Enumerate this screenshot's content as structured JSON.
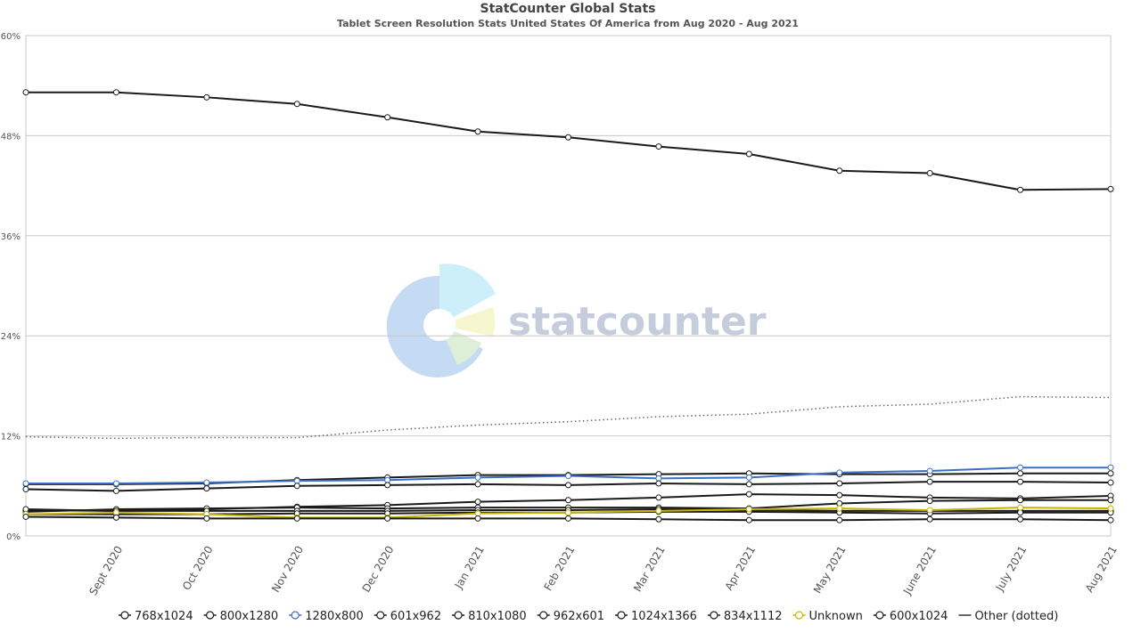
{
  "chart_data": {
    "type": "line",
    "title": "StatCounter Global Stats",
    "subtitle": "Tablet Screen Resolution Stats United States Of America from Aug 2020 - Aug 2021",
    "watermark": "statcounter",
    "categories": [
      null,
      "Sept 2020",
      "Oct 2020",
      "Nov 2020",
      "Dec 2020",
      "Jan 2021",
      "Feb 2021",
      "Mar 2021",
      "Apr 2021",
      "May 2021",
      "June 2021",
      "July 2021",
      "Aug 2021"
    ],
    "ylim": [
      0,
      60
    ],
    "yticks": [
      {
        "value": 0,
        "label": "0%"
      },
      {
        "value": 12,
        "label": "12%"
      },
      {
        "value": 24,
        "label": "24%"
      },
      {
        "value": 36,
        "label": "36%"
      },
      {
        "value": 48,
        "label": "48%"
      },
      {
        "value": 60,
        "label": "60%"
      }
    ],
    "grid": true,
    "legend": "bottom",
    "series": [
      {
        "name": "768x1024",
        "color": "#1a1a1a",
        "values": [
          53.2,
          53.2,
          52.6,
          51.8,
          50.2,
          48.5,
          47.8,
          46.7,
          45.8,
          43.8,
          43.5,
          41.5,
          41.6
        ]
      },
      {
        "name": "800x1280",
        "color": "#1a1a1a",
        "values": [
          6.2,
          6.2,
          6.3,
          6.7,
          7.0,
          7.3,
          7.3,
          7.4,
          7.5,
          7.4,
          7.4,
          7.5,
          7.5
        ]
      },
      {
        "name": "1280x800",
        "color": "#3a6fc4",
        "values": [
          6.3,
          6.3,
          6.4,
          6.6,
          6.7,
          7.0,
          7.2,
          6.9,
          7.0,
          7.6,
          7.8,
          8.2,
          8.2
        ]
      },
      {
        "name": "601x962",
        "color": "#1a1a1a",
        "values": [
          5.6,
          5.4,
          5.7,
          6.0,
          6.1,
          6.2,
          6.1,
          6.3,
          6.2,
          6.3,
          6.5,
          6.5,
          6.4
        ]
      },
      {
        "name": "810x1080",
        "color": "#1a1a1a",
        "values": [
          3.1,
          3.0,
          3.2,
          3.5,
          3.7,
          4.1,
          4.3,
          4.6,
          5.0,
          4.9,
          4.6,
          4.5,
          4.8
        ]
      },
      {
        "name": "962x601",
        "color": "#1a1a1a",
        "values": [
          2.9,
          3.2,
          3.3,
          3.4,
          3.3,
          3.4,
          3.4,
          3.4,
          3.3,
          3.9,
          4.2,
          4.3,
          4.3
        ]
      },
      {
        "name": "1024x1366",
        "color": "#1a1a1a",
        "values": [
          3.2,
          3.0,
          3.0,
          3.0,
          3.0,
          3.1,
          3.1,
          3.2,
          3.1,
          3.0,
          3.0,
          3.0,
          3.0
        ]
      },
      {
        "name": "834x1112",
        "color": "#1a1a1a",
        "values": [
          2.6,
          2.6,
          2.6,
          2.7,
          2.7,
          2.8,
          2.8,
          2.9,
          2.9,
          2.8,
          2.7,
          2.8,
          2.8
        ]
      },
      {
        "name": "Unknown",
        "color": "#c8b400",
        "values": [
          2.6,
          2.8,
          2.6,
          2.2,
          2.2,
          2.7,
          2.8,
          3.0,
          3.2,
          3.3,
          3.1,
          3.4,
          3.3
        ]
      },
      {
        "name": "600x1024",
        "color": "#1a1a1a",
        "values": [
          2.3,
          2.2,
          2.1,
          2.1,
          2.1,
          2.1,
          2.1,
          2.0,
          1.9,
          1.9,
          2.0,
          2.0,
          1.9
        ]
      },
      {
        "name": "Other (dotted)",
        "color": "#666666",
        "style": "dotted",
        "values": [
          11.9,
          11.7,
          11.8,
          11.8,
          12.7,
          13.3,
          13.7,
          14.3,
          14.6,
          15.5,
          15.8,
          16.7,
          16.6
        ]
      }
    ]
  }
}
